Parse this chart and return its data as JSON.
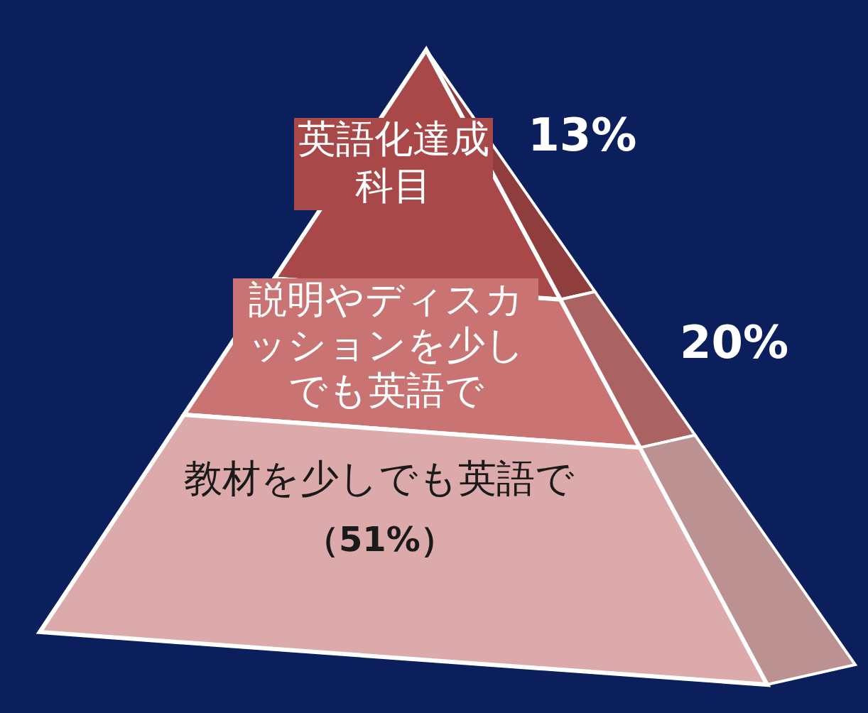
{
  "chart_data": {
    "type": "other",
    "categories": [
      "英語化達成科目",
      "説明やディスカッションを少しでも英語で",
      "教材を少しでも英語で"
    ],
    "values": [
      13,
      20,
      51
    ],
    "value_labels": [
      "13%",
      "20%",
      "（51%）"
    ],
    "colors": [
      "#a84848",
      "#c97373",
      "#dcaaaa"
    ]
  }
}
